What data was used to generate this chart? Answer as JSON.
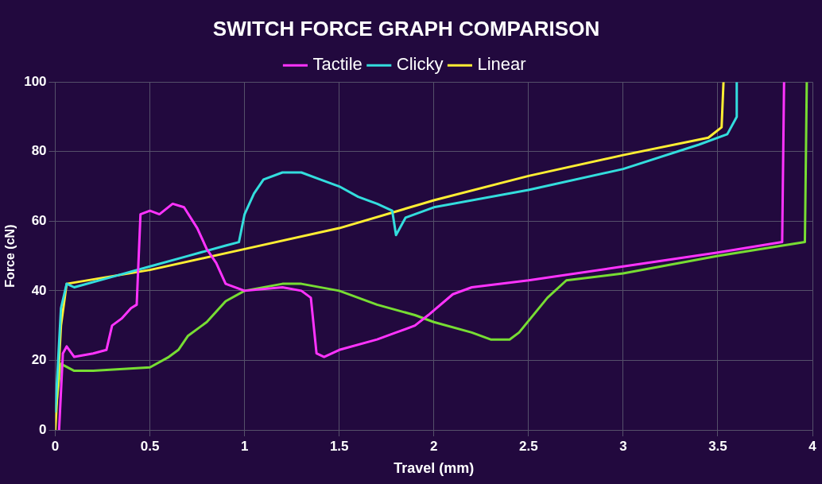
{
  "chart_data": {
    "type": "line",
    "title": "SWITCH FORCE GRAPH COMPARISON",
    "xlabel": "Travel (mm)",
    "ylabel": "Force (cN)",
    "xlim": [
      0,
      4
    ],
    "xticks": [
      0,
      0.5,
      1,
      1.5,
      2,
      2.5,
      3,
      3.5,
      4
    ],
    "ylim": [
      0,
      100
    ],
    "yticks": [
      0,
      20,
      40,
      60,
      80,
      100
    ],
    "grid": true,
    "legend": "top",
    "line_style": "solid",
    "series": [
      {
        "name": "Tactile",
        "color": "#ff33ff",
        "x": [
          0.02,
          0.04,
          0.06,
          0.1,
          0.2,
          0.27,
          0.3,
          0.35,
          0.4,
          0.43,
          0.45,
          0.5,
          0.55,
          0.62,
          0.68,
          0.75,
          0.8,
          0.85,
          0.9,
          1.0,
          1.2,
          1.3,
          1.35,
          1.38,
          1.42,
          1.5,
          1.7,
          1.8,
          1.9,
          1.97,
          2.1,
          2.2,
          2.5,
          3.0,
          3.5,
          3.84,
          3.85
        ],
        "values": [
          0,
          22,
          24,
          21,
          22,
          23,
          30,
          32,
          35,
          36,
          62,
          63,
          62,
          65,
          64,
          58,
          52,
          48,
          42,
          40,
          41,
          40,
          38,
          22,
          21,
          23,
          26,
          28,
          30,
          33,
          39,
          41,
          43,
          47,
          51,
          54,
          100
        ]
      },
      {
        "name": "Clicky",
        "color": "#33dddd",
        "x": [
          0.0,
          0.03,
          0.06,
          0.1,
          0.3,
          0.5,
          0.7,
          0.9,
          0.97,
          1.0,
          1.05,
          1.1,
          1.2,
          1.3,
          1.4,
          1.5,
          1.6,
          1.7,
          1.78,
          1.8,
          1.85,
          2.0,
          2.5,
          3.0,
          3.4,
          3.55,
          3.6,
          3.6
        ],
        "values": [
          5,
          35,
          42,
          41,
          44,
          47,
          50,
          53,
          54,
          62,
          68,
          72,
          74,
          74,
          72,
          70,
          67,
          65,
          63,
          56,
          61,
          64,
          69,
          75,
          82,
          85,
          90,
          100
        ]
      },
      {
        "name": "Linear",
        "color": "#ffee33",
        "x": [
          0.0,
          0.03,
          0.06,
          0.5,
          1.0,
          1.5,
          2.0,
          2.5,
          3.0,
          3.45,
          3.52,
          3.53
        ],
        "values": [
          0,
          30,
          42,
          46,
          52,
          58,
          66,
          73,
          79,
          84,
          87,
          100
        ]
      },
      {
        "color": "#77dd33",
        "x": [
          0,
          0.03,
          0.1,
          0.2,
          0.5,
          0.6,
          0.65,
          0.7,
          0.8,
          0.9,
          1.0,
          1.2,
          1.3,
          1.5,
          1.7,
          1.9,
          2.0,
          2.2,
          2.3,
          2.4,
          2.45,
          2.6,
          2.7,
          3.0,
          3.5,
          3.96,
          3.97
        ],
        "values": [
          5,
          19,
          17,
          17,
          18,
          21,
          23,
          27,
          31,
          37,
          40,
          42,
          42,
          40,
          36,
          33,
          31,
          28,
          26,
          26,
          28,
          38,
          43,
          45,
          50,
          54,
          100
        ]
      }
    ]
  }
}
